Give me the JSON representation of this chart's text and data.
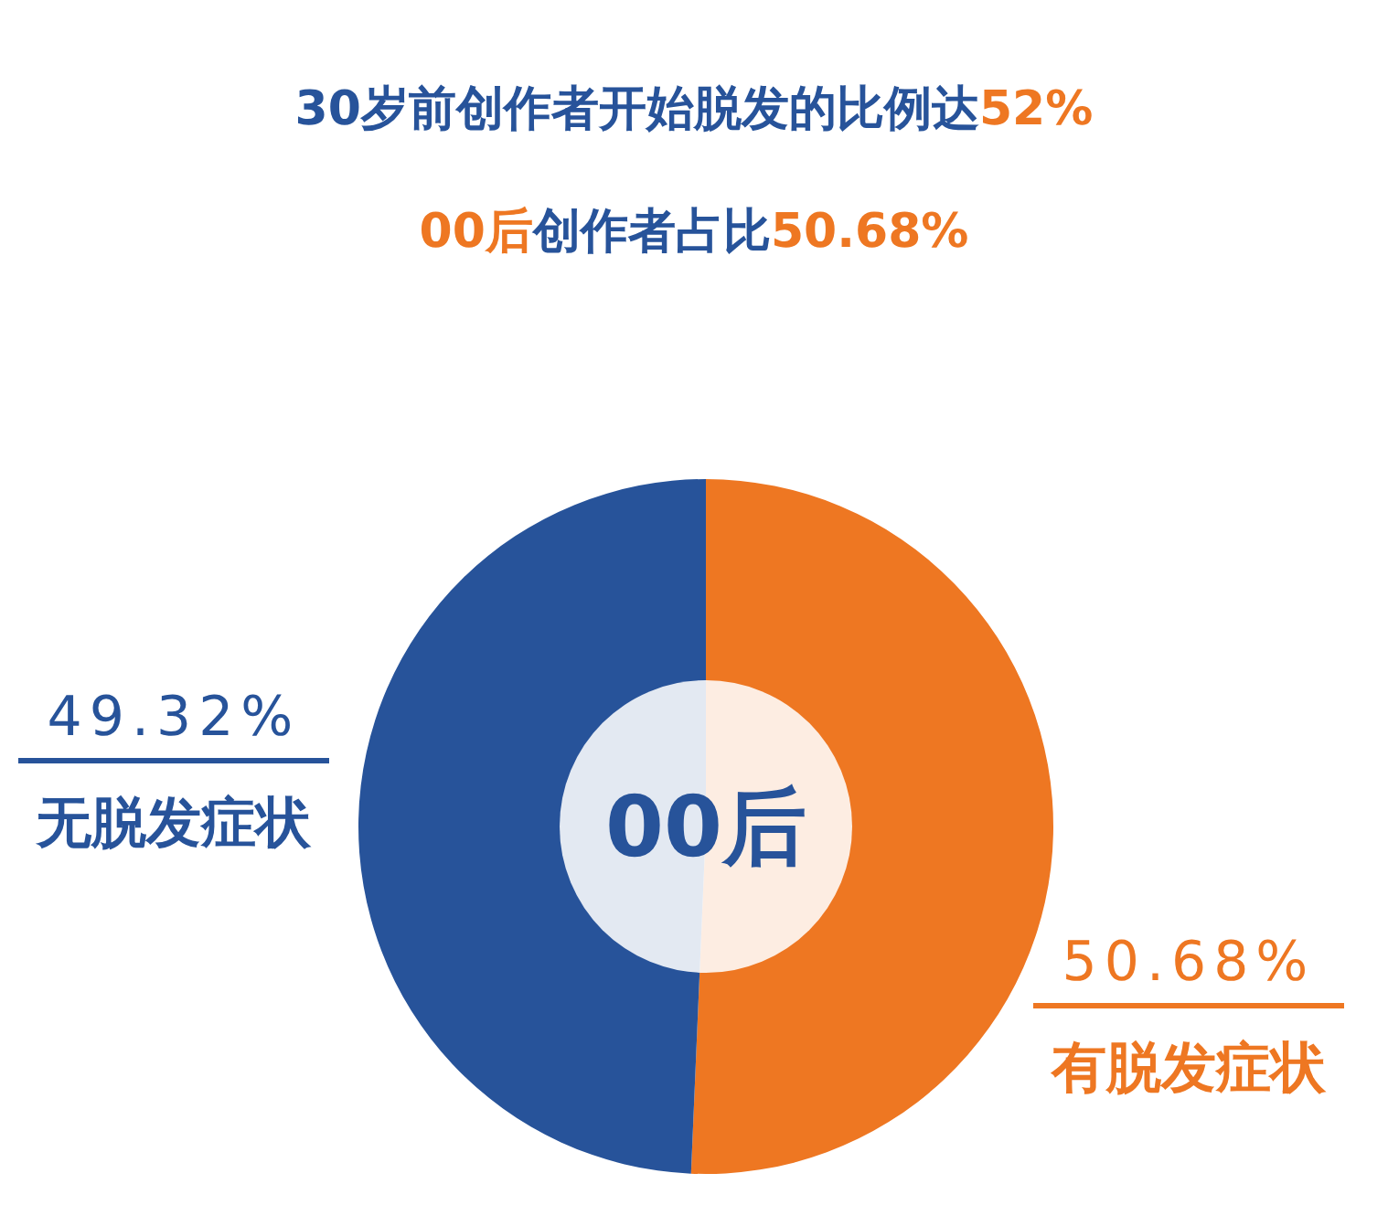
{
  "chart_data": {
    "type": "donut",
    "title": "30岁前创作者开始脱发的比例达52%",
    "subtitle": "00后创作者占比50.68%",
    "categories": [
      "有脱发症状",
      "无脱发症状"
    ],
    "values": [
      50.68,
      49.32
    ],
    "colors": [
      "#ee7722",
      "#27539a"
    ],
    "value_labels": [
      "50.68%",
      "49.32%"
    ],
    "annotations": [
      "00后"
    ]
  }
}
